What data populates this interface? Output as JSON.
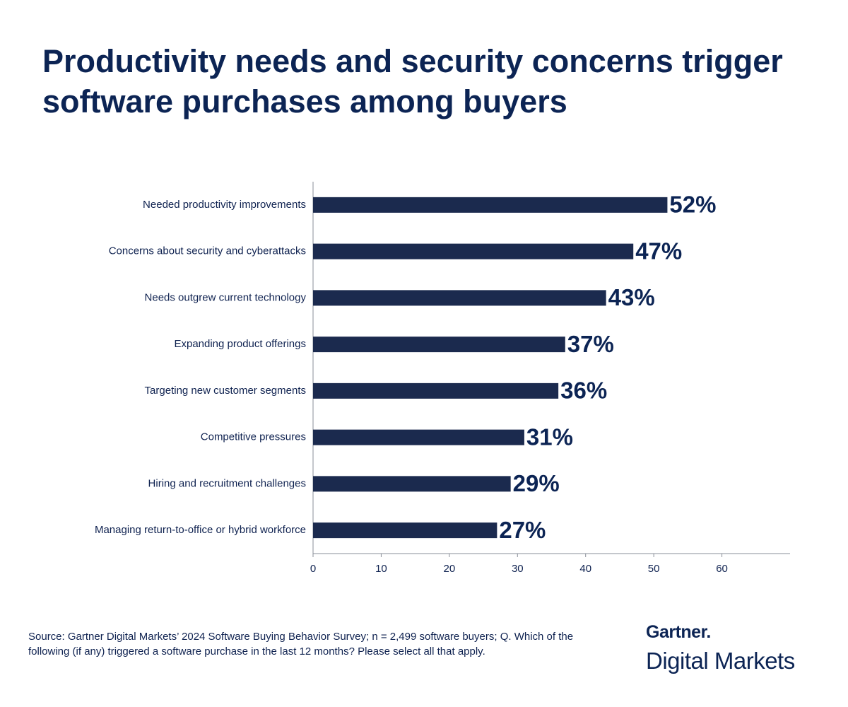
{
  "chart_data": {
    "type": "bar",
    "orientation": "horizontal",
    "title": "Productivity needs and security concerns trigger software purchases among buyers",
    "categories": [
      "Needed productivity improvements",
      "Concerns about security and cyberattacks",
      "Needs outgrew current technology",
      "Expanding product offerings",
      "Targeting new customer segments",
      "Competitive pressures",
      "Hiring and recruitment challenges",
      "Managing return-to-office or hybrid workforce"
    ],
    "values": [
      52,
      47,
      43,
      37,
      36,
      31,
      29,
      27
    ],
    "value_labels": [
      "52%",
      "47%",
      "43%",
      "37%",
      "36%",
      "31%",
      "29%",
      "27%"
    ],
    "color": "#1b2a4e",
    "xlim": [
      0,
      70
    ],
    "xticks": [
      0,
      10,
      20,
      30,
      40,
      50,
      60
    ],
    "grid": false,
    "source": "Source: Gartner Digital Markets’ 2024 Software Buying Behavior Survey; n = 2,499 software buyers; Q. Which of the following (if any) triggered a software purchase in the last 12 months? Please select all that apply.",
    "brand": "Gartner.",
    "brand_sub": "Digital Markets"
  }
}
